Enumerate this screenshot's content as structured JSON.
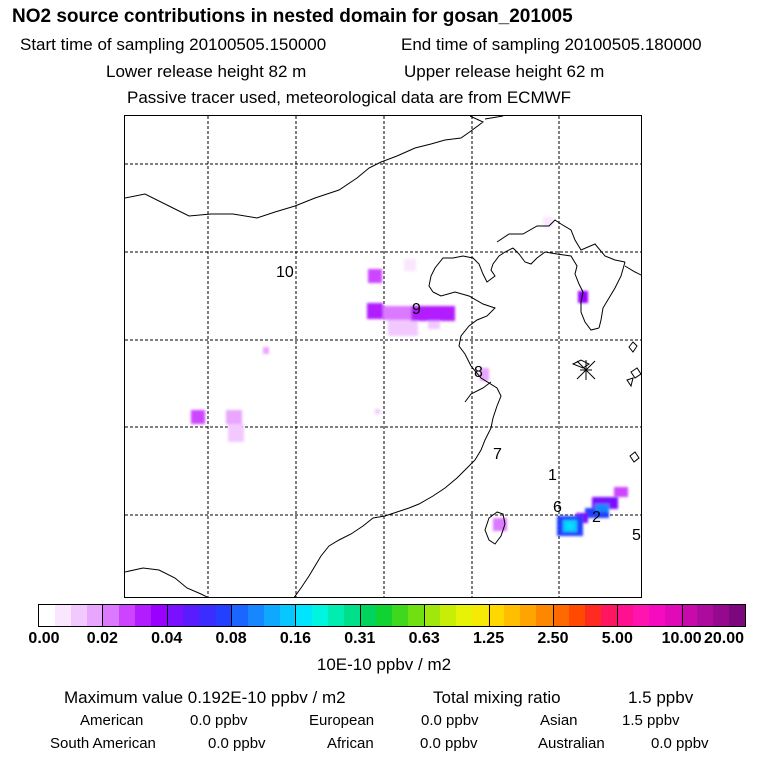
{
  "header": {
    "title": "NO2 source contributions in nested domain for gosan_201005",
    "start_label": "Start time of sampling 20100505.150000",
    "end_label": "End time of sampling 20100505.180000",
    "lower_label": "Lower release height   82 m",
    "upper_label": "Upper release height   62 m",
    "note": "Passive tracer used, meteorological data are from ECMWF"
  },
  "map": {
    "region_labels": [
      "1",
      "2",
      "5",
      "6",
      "7",
      "8",
      "9",
      "10"
    ],
    "station_marker": "asterisk-icon"
  },
  "colorbar": {
    "ticks": [
      "0.00",
      "0.02",
      "0.04",
      "0.08",
      "0.16",
      "0.31",
      "0.63",
      "1.25",
      "2.50",
      "5.00",
      "10.00",
      "20.00"
    ],
    "colors": [
      "#ffffff",
      "#fbe6ff",
      "#f2c9ff",
      "#e9a6ff",
      "#dc7aff",
      "#cc44ff",
      "#b21dff",
      "#9900ff",
      "#7a10ff",
      "#5a1cff",
      "#3b2cff",
      "#2340ff",
      "#1a66ff",
      "#1687ff",
      "#0ea8ff",
      "#08c7ff",
      "#00e5ff",
      "#00f5e0",
      "#00ecb0",
      "#00e08a",
      "#00d45c",
      "#10d230",
      "#40d81c",
      "#70e010",
      "#a0e80c",
      "#c8ee08",
      "#e6f206",
      "#f6ea04",
      "#ffd800",
      "#ffbf00",
      "#ffa400",
      "#ff8700",
      "#ff6a00",
      "#ff4a00",
      "#ff2a20",
      "#ff1560",
      "#ff1090",
      "#ff14b0",
      "#f60bbf",
      "#e00ab8",
      "#c80aac",
      "#ad0a9e",
      "#94098e",
      "#7c087e"
    ],
    "unit": "10E-10 ppbv / m2"
  },
  "summary": {
    "max_label": "Maximum value  0.192E-10 ppbv / m2",
    "total_label": "Total mixing ratio",
    "total_value": "1.5 ppbv",
    "rows": [
      [
        {
          "name": "American",
          "value": "0.0 ppbv"
        },
        {
          "name": "European",
          "value": "0.0 ppbv"
        },
        {
          "name": "Asian",
          "value": "1.5 ppbv"
        }
      ],
      [
        {
          "name": "South American",
          "value": "0.0 ppbv"
        },
        {
          "name": "African",
          "value": "0.0 ppbv"
        },
        {
          "name": "Australian",
          "value": "0.0 ppbv"
        }
      ]
    ]
  }
}
